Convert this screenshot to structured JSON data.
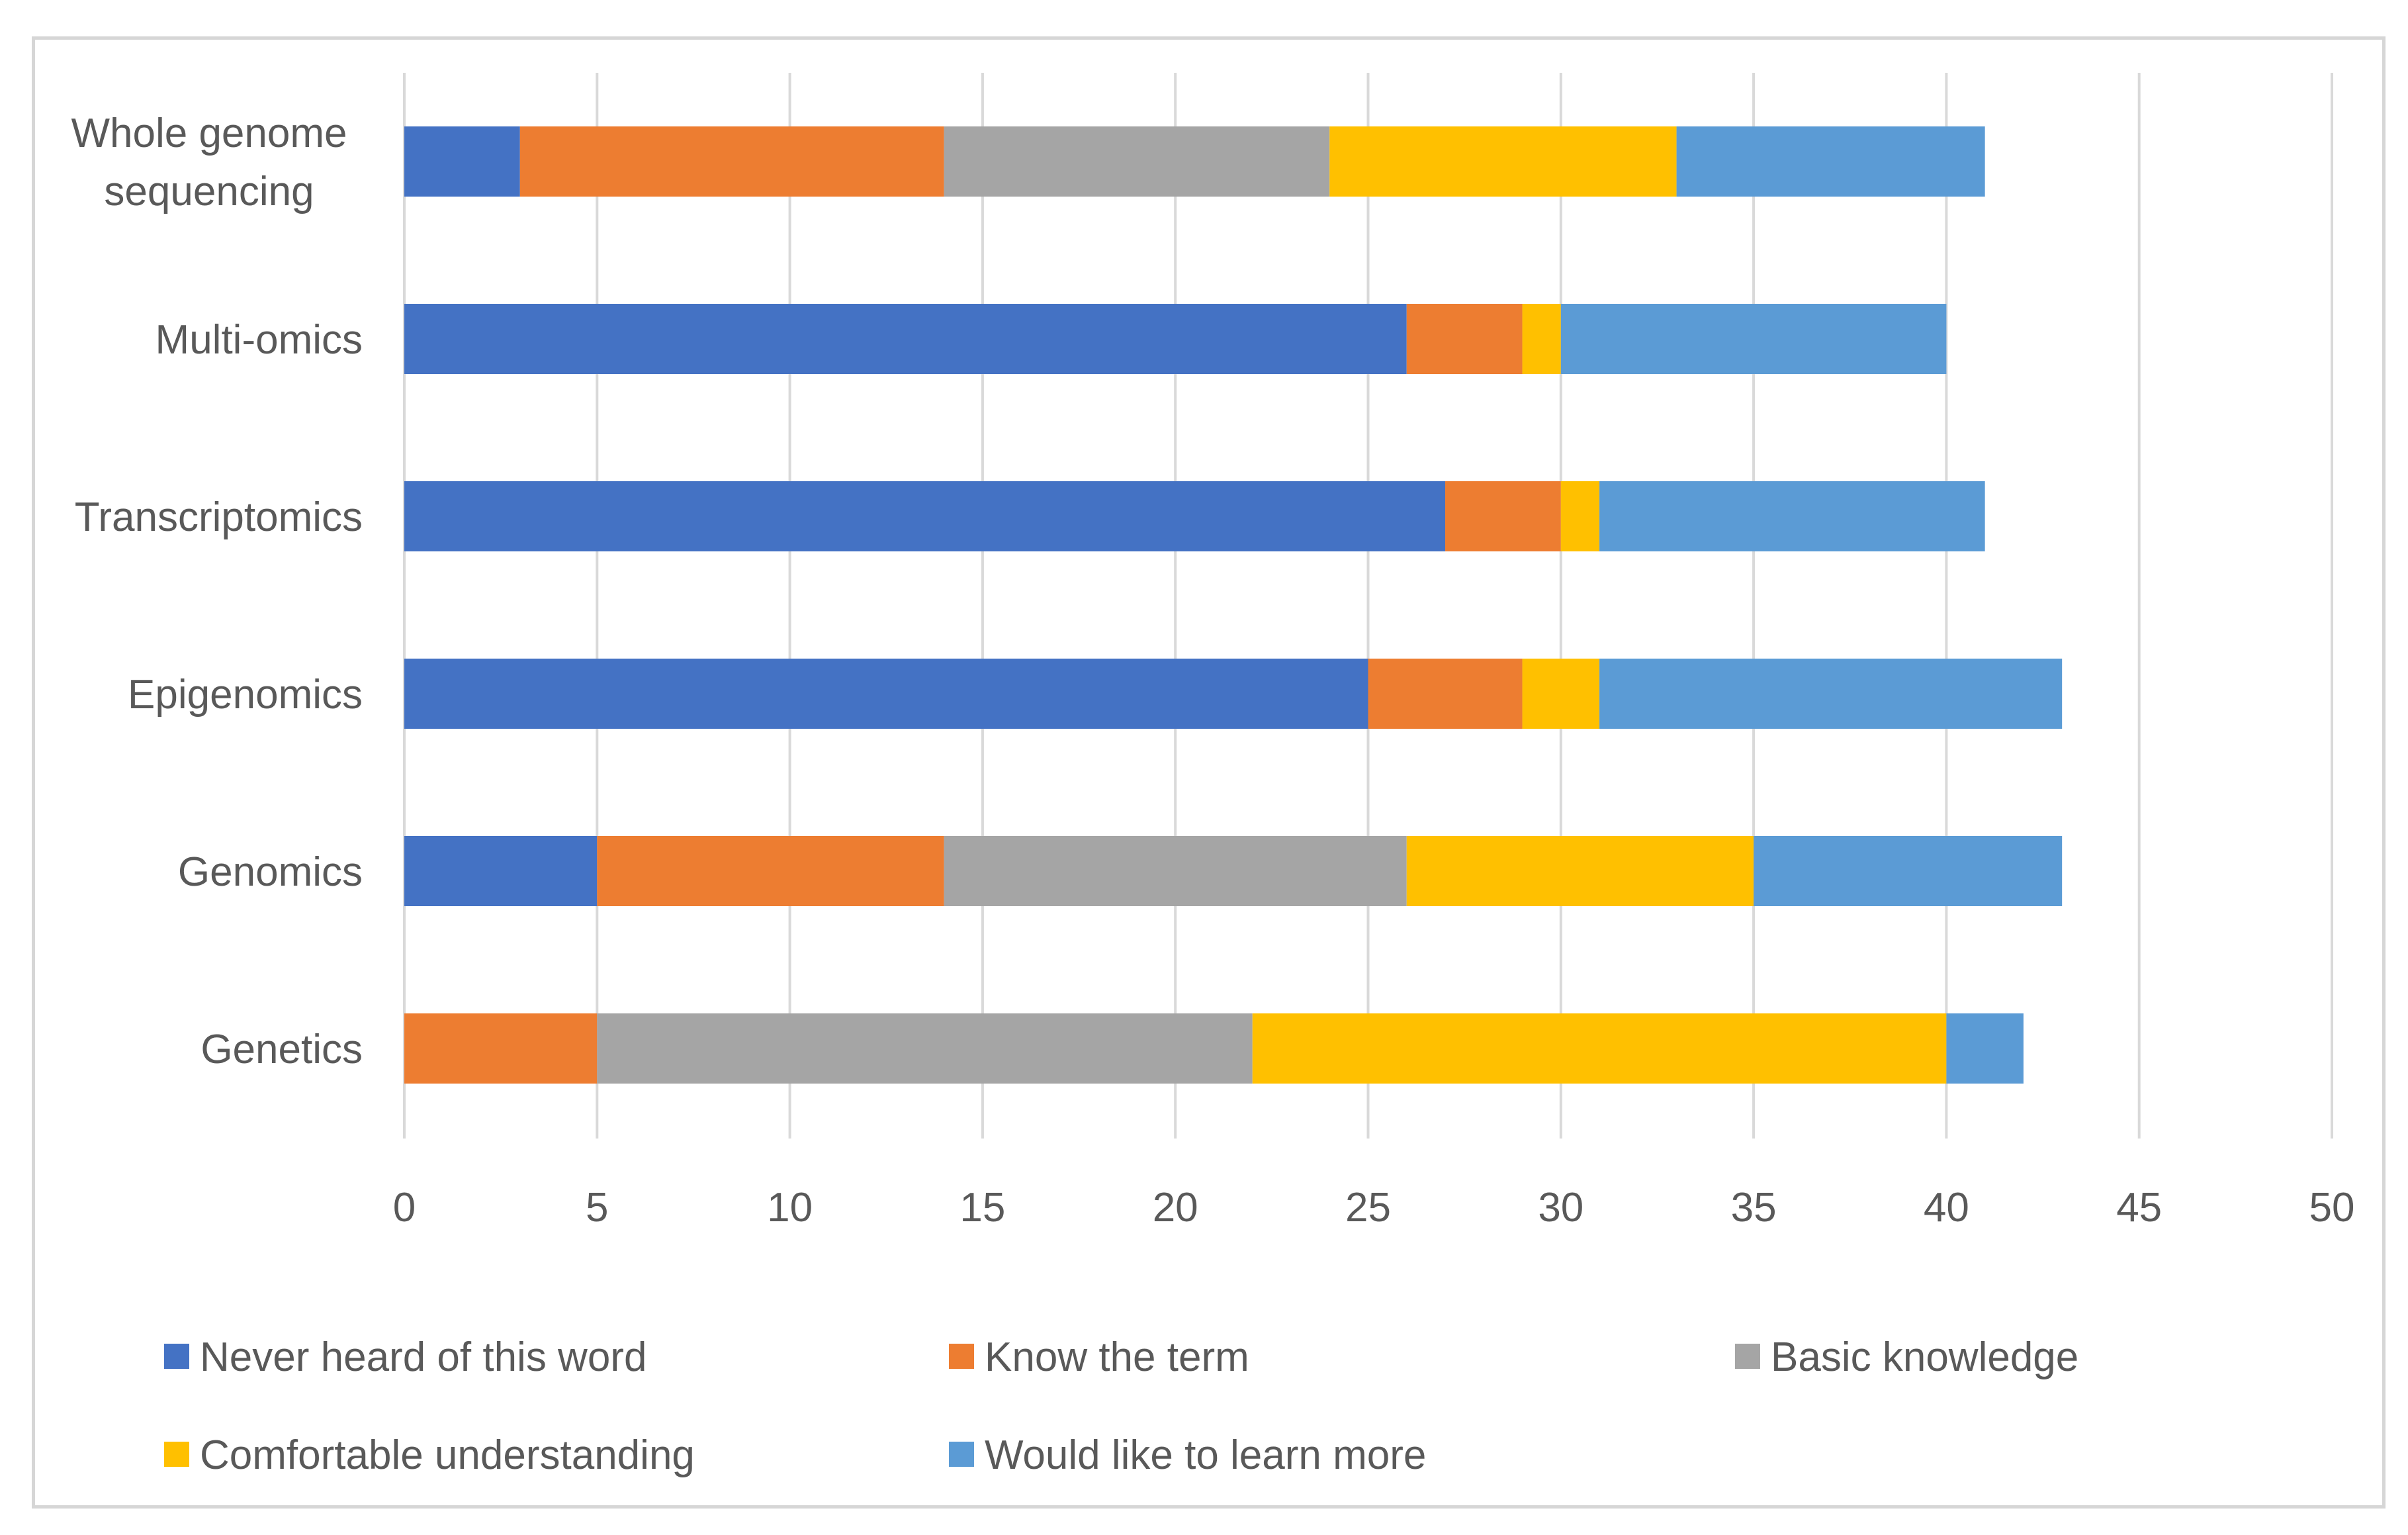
{
  "chart_data": {
    "type": "bar",
    "orientation": "horizontal",
    "stacked": true,
    "categories": [
      "Whole genome sequencing",
      "Multi-omics",
      "Transcriptomics",
      "Epigenomics",
      "Genomics",
      "Genetics"
    ],
    "category_display": [
      [
        "Whole genome",
        "sequencing"
      ],
      [
        "Multi-omics"
      ],
      [
        "Transcriptomics"
      ],
      [
        "Epigenomics"
      ],
      [
        "Genomics"
      ],
      [
        "Genetics"
      ]
    ],
    "series": [
      {
        "name": "Never heard of this word",
        "color": "#4472c4",
        "values": [
          3,
          26,
          27,
          25,
          5,
          0
        ]
      },
      {
        "name": "Know the term",
        "color": "#ed7d31",
        "values": [
          11,
          3,
          3,
          4,
          9,
          5
        ]
      },
      {
        "name": "Basic knowledge",
        "color": "#a5a5a5",
        "values": [
          10,
          0,
          0,
          0,
          12,
          17
        ]
      },
      {
        "name": "Comfortable understanding",
        "color": "#ffc000",
        "values": [
          9,
          1,
          1,
          2,
          9,
          18
        ]
      },
      {
        "name": "Would like to learn more",
        "color": "#5b9bd5",
        "values": [
          8,
          10,
          10,
          12,
          8,
          2
        ]
      }
    ],
    "xlim": [
      0,
      50
    ],
    "xticks": [
      0,
      5,
      10,
      15,
      20,
      25,
      30,
      35,
      40,
      45,
      50
    ],
    "grid": true,
    "legend_position": "bottom",
    "title": "",
    "xlabel": "",
    "ylabel": ""
  }
}
